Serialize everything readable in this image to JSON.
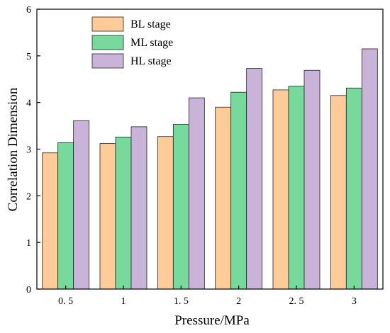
{
  "chart_data": {
    "type": "bar",
    "title": "",
    "xlabel": "Pressure/MPa",
    "ylabel": "Correlation Dimension",
    "categories": [
      "0. 5",
      "1",
      "1. 5",
      "2",
      "2. 5",
      "3"
    ],
    "ylim": [
      0,
      6
    ],
    "yticks": [
      "0",
      "1",
      "2",
      "3",
      "4",
      "5",
      "6"
    ],
    "legend_position": "top-left",
    "series": [
      {
        "name": "BL stage",
        "color": "#ffcc99",
        "values": [
          2.92,
          3.12,
          3.27,
          3.9,
          4.27,
          4.15
        ]
      },
      {
        "name": "ML stage",
        "color": "#77d99c",
        "values": [
          3.14,
          3.26,
          3.53,
          4.22,
          4.35,
          4.31
        ]
      },
      {
        "name": "HL stage",
        "color": "#c9b3d9",
        "values": [
          3.61,
          3.48,
          4.1,
          4.73,
          4.69,
          5.15
        ]
      }
    ],
    "grid": false
  }
}
